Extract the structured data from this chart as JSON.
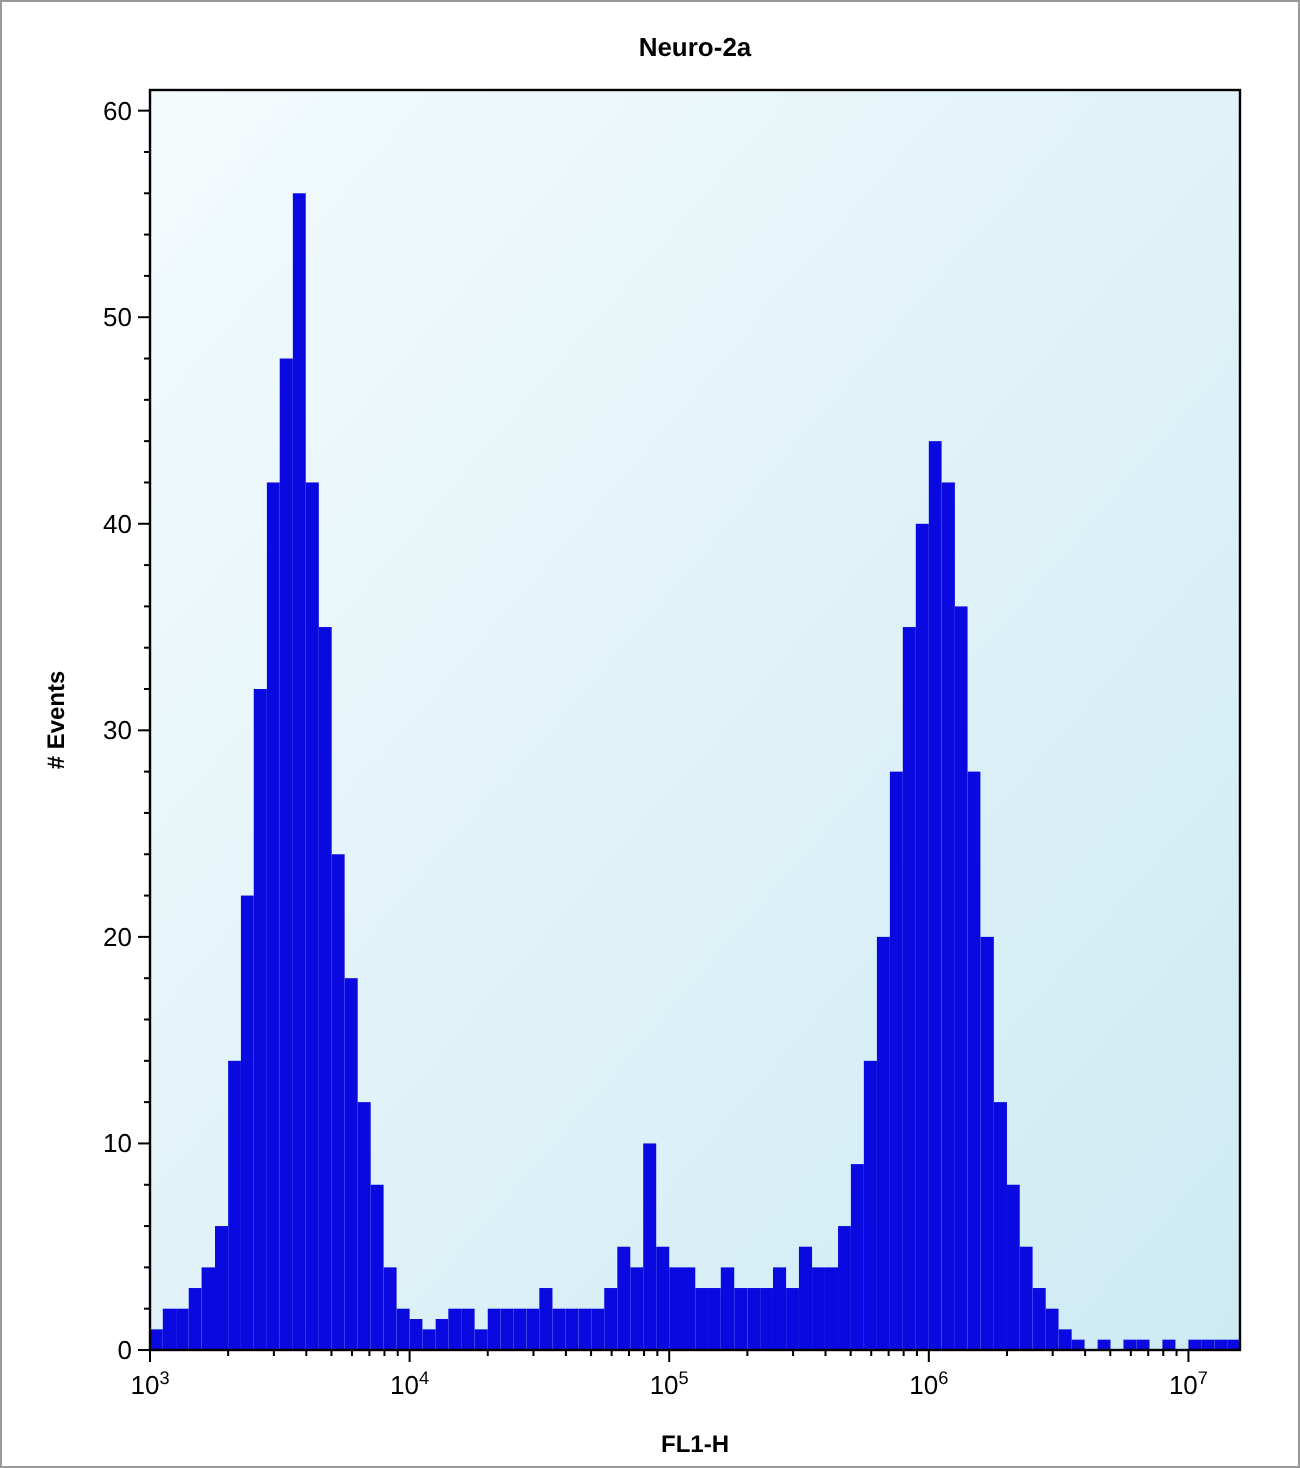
{
  "chart_data": {
    "type": "histogram",
    "title": "Neuro-2a",
    "xlabel": "FL1-H",
    "ylabel": "# Events",
    "color": "#0a0ae0",
    "log": "x",
    "grid": false,
    "bins": [
      1000,
      1120,
      1260,
      1410,
      1580,
      1780,
      2000,
      2240,
      2510,
      2820,
      3160,
      3550,
      3980,
      4470,
      5010,
      5620,
      6310,
      7080,
      7940,
      8910,
      10000,
      11200,
      12600,
      14100,
      15800,
      17800,
      20000,
      22400,
      25100,
      28200,
      31600,
      35500,
      39800,
      44700,
      50100,
      56200,
      63100,
      70800,
      79400,
      89100,
      100000,
      112000,
      126000,
      141000,
      158000,
      178000,
      200000,
      224000,
      251000,
      282000,
      316000,
      355000,
      398000,
      447000,
      501000,
      562000,
      631000,
      708000,
      794000,
      891000,
      1000000,
      1120000,
      1260000,
      1410000,
      1580000,
      1780000,
      2000000,
      2240000,
      2510000,
      2820000,
      3160000,
      3550000,
      3980000,
      4470000,
      5010000,
      5620000,
      6310000,
      7080000,
      7940000,
      8910000,
      10000000,
      11200000,
      12600000,
      14100000,
      15800000
    ],
    "values": [
      1,
      2,
      2,
      3,
      4,
      6,
      14,
      22,
      32,
      42,
      48,
      56,
      42,
      35,
      24,
      18,
      12,
      8,
      4,
      2,
      1.5,
      1,
      1.5,
      2,
      2,
      1,
      2,
      2,
      2,
      2,
      3,
      2,
      2,
      2,
      2,
      3,
      5,
      4,
      10,
      5,
      4,
      4,
      3,
      3,
      4,
      3,
      3,
      3,
      4,
      3,
      5,
      4,
      4,
      6,
      9,
      14,
      20,
      28,
      35,
      40,
      44,
      42,
      36,
      28,
      20,
      12,
      8,
      5,
      3,
      2,
      1,
      0.5,
      0,
      0.5,
      0,
      0.5,
      0.5,
      0,
      0.5,
      0,
      0.5,
      0.5,
      0.5,
      0.5
    ],
    "xlim": [
      1000,
      15800000
    ],
    "xticks": [
      {
        "value": 1000,
        "label": "10$^{3}$"
      },
      {
        "value": 2000,
        "label": null
      },
      {
        "value": 3000,
        "label": null
      },
      {
        "value": 4000,
        "label": null
      },
      {
        "value": 5000,
        "label": null
      },
      {
        "value": 6000,
        "label": null
      },
      {
        "value": 7000,
        "label": null
      },
      {
        "value": 8000,
        "label": null
      },
      {
        "value": 9000,
        "label": null
      },
      {
        "value": 10000,
        "label": "10$^{4}$"
      },
      {
        "value": 20000,
        "label": null
      },
      {
        "value": 30000,
        "label": null
      },
      {
        "value": 40000,
        "label": null
      },
      {
        "value": 50000,
        "label": null
      },
      {
        "value": 60000,
        "label": null
      },
      {
        "value": 70000,
        "label": null
      },
      {
        "value": 80000,
        "label": null
      },
      {
        "value": 90000,
        "label": null
      },
      {
        "value": 100000,
        "label": "10$^{5}$"
      },
      {
        "value": 200000,
        "label": null
      },
      {
        "value": 300000,
        "label": null
      },
      {
        "value": 400000,
        "label": null
      },
      {
        "value": 500000,
        "label": null
      },
      {
        "value": 600000,
        "label": null
      },
      {
        "value": 700000,
        "label": null
      },
      {
        "value": 800000,
        "label": null
      },
      {
        "value": 900000,
        "label": null
      },
      {
        "value": 1000000,
        "label": "10$^{6}$"
      },
      {
        "value": 2000000,
        "label": null
      },
      {
        "value": 3000000,
        "label": null
      },
      {
        "value": 4000000,
        "label": null
      },
      {
        "value": 5000000,
        "label": null
      },
      {
        "value": 6000000,
        "label": null
      },
      {
        "value": 7000000,
        "label": null
      },
      {
        "value": 8000000,
        "label": null
      },
      {
        "value": 9000000,
        "label": null
      },
      {
        "value": 10000000,
        "label": "10$^{7}$"
      }
    ],
    "ylim": [
      0,
      61
    ],
    "yticks": [
      0,
      {
        "value": 2,
        "label": null
      },
      {
        "value": 4,
        "label": null
      },
      {
        "value": 6,
        "label": null
      },
      {
        "value": 8,
        "label": null
      },
      10,
      {
        "value": 12,
        "label": null
      },
      {
        "value": 14,
        "label": null
      },
      {
        "value": 16,
        "label": null
      },
      {
        "value": 18,
        "label": null
      },
      20,
      {
        "value": 22,
        "label": null
      },
      {
        "value": 24,
        "label": null
      },
      {
        "value": 26,
        "label": null
      },
      {
        "value": 28,
        "label": null
      },
      30,
      {
        "value": 32,
        "label": null
      },
      {
        "value": 34,
        "label": null
      },
      {
        "value": 36,
        "label": null
      },
      {
        "value": 38,
        "label": null
      },
      40,
      {
        "value": 42,
        "label": null
      },
      {
        "value": 44,
        "label": null
      },
      {
        "value": 46,
        "label": null
      },
      {
        "value": 48,
        "label": null
      },
      50,
      {
        "value": 52,
        "label": null
      },
      {
        "value": 54,
        "label": null
      },
      {
        "value": 56,
        "label": null
      },
      {
        "value": 58,
        "label": null
      },
      60
    ]
  }
}
